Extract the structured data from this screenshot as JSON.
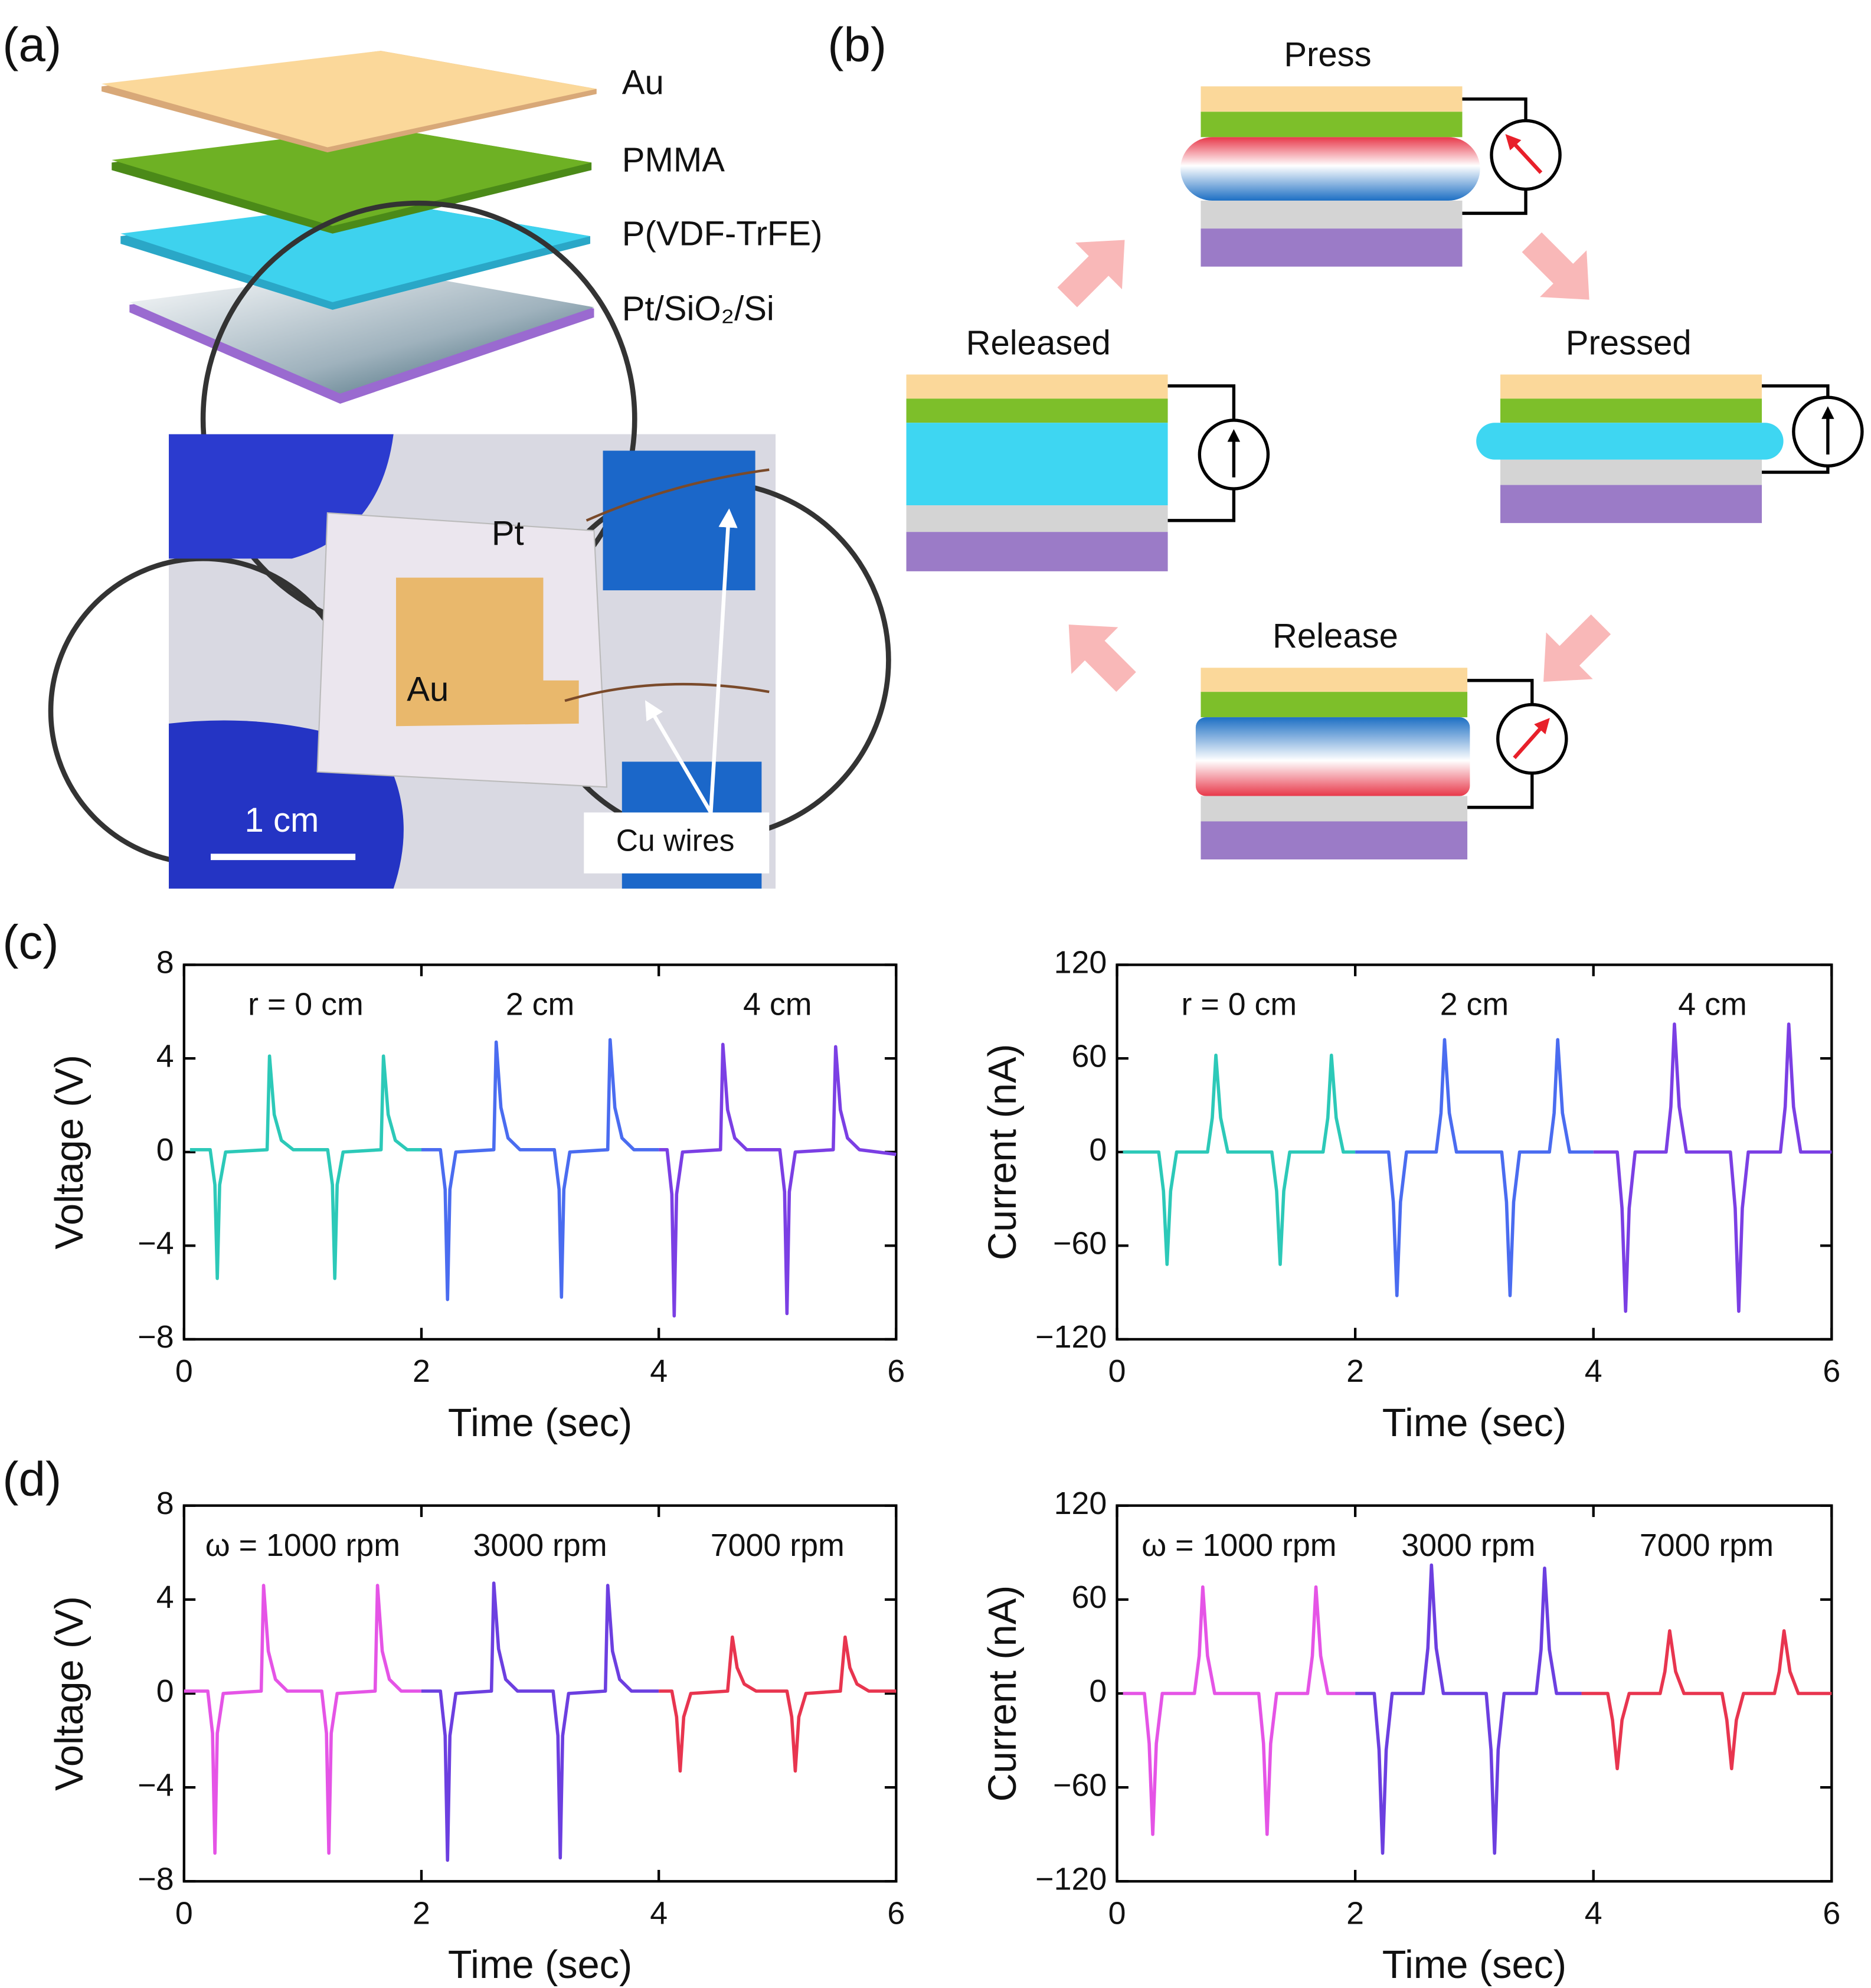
{
  "panels": {
    "a": "(a)",
    "b": "(b)",
    "c": "(c)",
    "d": "(d)"
  },
  "layers": [
    "Au",
    "PMMA",
    "P(VDF-TrFE)",
    "Pt/SiO₂/Si"
  ],
  "photo": {
    "labels": [
      "Pt",
      "Au"
    ],
    "scale_bar": "1 cm",
    "callout": "Cu wires"
  },
  "states": {
    "press": "Press",
    "pressed": "Pressed",
    "release": "Release",
    "released": "Released"
  },
  "chart_data": [
    {
      "type": "line",
      "ylabel": "Voltage (V)",
      "xlabel": "Time (sec)",
      "xlim": [
        0,
        6
      ],
      "ylim": [
        -8,
        8
      ],
      "xticks": [
        0,
        2,
        4,
        6
      ],
      "yticks": [
        {
          "value": -8,
          "label": "−8"
        },
        {
          "value": -4,
          "label": "−4"
        },
        0,
        4,
        8
      ],
      "series": [
        {
          "name": "r = 0 cm",
          "color": "#2cc9b8",
          "x": [
            0.05,
            0.22,
            0.26,
            0.28,
            0.3,
            0.35,
            0.7,
            0.72,
            0.76,
            0.82,
            0.92,
            1.21,
            1.25,
            1.27,
            1.29,
            1.34,
            1.66,
            1.68,
            1.72,
            1.78,
            1.88,
            2.0
          ],
          "values": [
            0.1,
            0.1,
            -1.4,
            -5.4,
            -1.4,
            0,
            0.1,
            4.1,
            1.6,
            0.5,
            0.1,
            0.1,
            -1.4,
            -5.4,
            -1.4,
            0,
            0.1,
            4.1,
            1.6,
            0.5,
            0.1,
            0.1
          ]
        },
        {
          "name": "2 cm",
          "color": "#4a6cf0",
          "x": [
            2.0,
            2.16,
            2.2,
            2.22,
            2.24,
            2.29,
            2.61,
            2.63,
            2.67,
            2.73,
            2.83,
            3.12,
            3.16,
            3.18,
            3.2,
            3.25,
            3.57,
            3.59,
            3.63,
            3.69,
            3.79,
            4.0
          ],
          "values": [
            0.1,
            0.1,
            -1.6,
            -6.3,
            -1.6,
            0,
            0.1,
            4.7,
            1.9,
            0.6,
            0.1,
            0.1,
            -1.6,
            -6.2,
            -1.6,
            0,
            0.1,
            4.8,
            1.9,
            0.6,
            0.1,
            0.1
          ]
        },
        {
          "name": "4 cm",
          "color": "#7b3fe4",
          "x": [
            4.0,
            4.07,
            4.11,
            4.13,
            4.15,
            4.2,
            4.52,
            4.54,
            4.58,
            4.64,
            4.74,
            5.02,
            5.06,
            5.08,
            5.1,
            5.15,
            5.47,
            5.49,
            5.53,
            5.59,
            5.69,
            6.0
          ],
          "values": [
            0.1,
            0.1,
            -1.8,
            -7.0,
            -1.8,
            0,
            0.1,
            4.6,
            1.8,
            0.6,
            0.1,
            0.1,
            -1.7,
            -6.9,
            -1.7,
            0,
            0.1,
            4.5,
            1.8,
            0.6,
            0.1,
            -0.1
          ]
        }
      ]
    },
    {
      "type": "line",
      "ylabel": "Current (nA)",
      "xlabel": "Time (sec)",
      "xlim": [
        0,
        6
      ],
      "ylim": [
        -120,
        120
      ],
      "xticks": [
        0,
        2,
        4,
        6
      ],
      "yticks": [
        {
          "value": -120,
          "label": "−120"
        },
        {
          "value": -60,
          "label": "−60"
        },
        0,
        60,
        120
      ],
      "series": [
        {
          "name": "r = 0 cm",
          "color": "#2cc9b8",
          "x": [
            0.05,
            0.35,
            0.39,
            0.42,
            0.45,
            0.5,
            0.76,
            0.8,
            0.83,
            0.87,
            0.93,
            1.3,
            1.34,
            1.37,
            1.4,
            1.45,
            1.73,
            1.77,
            1.8,
            1.84,
            1.9,
            2.0
          ],
          "values": [
            0,
            0,
            -25,
            -72,
            -25,
            0,
            0,
            22,
            62,
            22,
            0,
            0,
            -25,
            -72,
            -25,
            0,
            0,
            22,
            62,
            22,
            0,
            0
          ]
        },
        {
          "name": "2 cm",
          "color": "#4a6cf0",
          "x": [
            2.0,
            2.28,
            2.32,
            2.35,
            2.38,
            2.43,
            2.68,
            2.72,
            2.75,
            2.79,
            2.85,
            3.23,
            3.27,
            3.3,
            3.33,
            3.38,
            3.63,
            3.67,
            3.7,
            3.74,
            3.8,
            4.0
          ],
          "values": [
            0,
            0,
            -32,
            -92,
            -32,
            0,
            0,
            25,
            72,
            25,
            0,
            0,
            -32,
            -92,
            -32,
            0,
            0,
            25,
            72,
            25,
            0,
            0
          ]
        },
        {
          "name": "4 cm",
          "color": "#7b3fe4",
          "x": [
            4.0,
            4.2,
            4.24,
            4.27,
            4.3,
            4.35,
            4.61,
            4.65,
            4.68,
            4.72,
            4.78,
            5.15,
            5.19,
            5.22,
            5.25,
            5.3,
            5.57,
            5.61,
            5.64,
            5.68,
            5.74,
            6.0
          ],
          "values": [
            0,
            0,
            -36,
            -102,
            -36,
            0,
            0,
            29,
            82,
            29,
            0,
            0,
            -36,
            -102,
            -36,
            0,
            0,
            29,
            82,
            29,
            0,
            0
          ]
        }
      ]
    },
    {
      "type": "line",
      "ylabel": "Voltage (V)",
      "xlabel": "Time (sec)",
      "xlim": [
        0,
        6
      ],
      "ylim": [
        -8,
        8
      ],
      "xticks": [
        0,
        2,
        4,
        6
      ],
      "yticks": [
        {
          "value": -8,
          "label": "−8"
        },
        {
          "value": -4,
          "label": "−4"
        },
        0,
        4,
        8
      ],
      "series": [
        {
          "name": "ω = 1000 rpm",
          "color": "#e554e6",
          "x": [
            0.0,
            0.2,
            0.24,
            0.26,
            0.28,
            0.33,
            0.65,
            0.67,
            0.71,
            0.77,
            0.87,
            1.16,
            1.2,
            1.22,
            1.24,
            1.29,
            1.61,
            1.63,
            1.67,
            1.73,
            1.83,
            2.0
          ],
          "values": [
            0.1,
            0.1,
            -1.7,
            -6.8,
            -1.7,
            0,
            0.1,
            4.6,
            1.8,
            0.6,
            0.1,
            0.1,
            -1.7,
            -6.8,
            -1.7,
            0,
            0.1,
            4.6,
            1.8,
            0.6,
            0.1,
            0.1
          ]
        },
        {
          "name": "3000 rpm",
          "color": "#6c3fe0",
          "x": [
            2.0,
            2.16,
            2.2,
            2.22,
            2.24,
            2.29,
            2.59,
            2.61,
            2.65,
            2.71,
            2.81,
            3.11,
            3.15,
            3.17,
            3.19,
            3.24,
            3.55,
            3.57,
            3.61,
            3.67,
            3.77,
            4.0
          ],
          "values": [
            0.1,
            0.1,
            -1.8,
            -7.1,
            -1.8,
            0,
            0.1,
            4.7,
            1.9,
            0.6,
            0.1,
            0.1,
            -1.8,
            -7.0,
            -1.8,
            0,
            0.1,
            4.6,
            1.8,
            0.6,
            0.1,
            0.1
          ]
        },
        {
          "name": "7000 rpm",
          "color": "#e8354f",
          "x": [
            4.0,
            4.11,
            4.15,
            4.18,
            4.21,
            4.27,
            4.58,
            4.62,
            4.66,
            4.72,
            4.82,
            5.08,
            5.12,
            5.15,
            5.18,
            5.24,
            5.53,
            5.57,
            5.61,
            5.67,
            5.77,
            6.0
          ],
          "values": [
            0.1,
            0.1,
            -1.0,
            -3.3,
            -1.0,
            0,
            0.1,
            2.4,
            1.1,
            0.4,
            0.1,
            0.1,
            -1.0,
            -3.3,
            -1.0,
            0,
            0.1,
            2.4,
            1.1,
            0.4,
            0.1,
            0.1
          ]
        }
      ]
    },
    {
      "type": "line",
      "ylabel": "Current (nA)",
      "xlabel": "Time (sec)",
      "xlim": [
        0,
        6
      ],
      "ylim": [
        -120,
        120
      ],
      "xticks": [
        0,
        2,
        4,
        6
      ],
      "yticks": [
        {
          "value": -120,
          "label": "−120"
        },
        {
          "value": -60,
          "label": "−60"
        },
        0,
        60,
        120
      ],
      "series": [
        {
          "name": "ω = 1000 rpm",
          "color": "#e554e6",
          "x": [
            0.05,
            0.23,
            0.27,
            0.3,
            0.33,
            0.38,
            0.65,
            0.69,
            0.72,
            0.76,
            0.82,
            1.19,
            1.23,
            1.26,
            1.29,
            1.34,
            1.6,
            1.64,
            1.67,
            1.71,
            1.77,
            2.0
          ],
          "values": [
            0,
            0,
            -32,
            -90,
            -32,
            0,
            0,
            24,
            68,
            24,
            0,
            0,
            -32,
            -90,
            -32,
            0,
            0,
            24,
            68,
            24,
            0,
            0
          ]
        },
        {
          "name": "3000 rpm",
          "color": "#6c3fe0",
          "x": [
            2.0,
            2.16,
            2.2,
            2.23,
            2.26,
            2.31,
            2.57,
            2.61,
            2.64,
            2.68,
            2.74,
            3.1,
            3.14,
            3.17,
            3.2,
            3.25,
            3.52,
            3.56,
            3.59,
            3.63,
            3.69,
            3.9
          ],
          "values": [
            0,
            0,
            -36,
            -102,
            -36,
            0,
            0,
            29,
            82,
            29,
            0,
            0,
            -36,
            -102,
            -36,
            0,
            0,
            28,
            80,
            28,
            0,
            0
          ]
        },
        {
          "name": "7000 rpm",
          "color": "#e8354f",
          "x": [
            3.9,
            4.12,
            4.16,
            4.2,
            4.24,
            4.3,
            4.56,
            4.6,
            4.64,
            4.69,
            4.76,
            5.08,
            5.12,
            5.16,
            5.2,
            5.26,
            5.52,
            5.56,
            5.6,
            5.65,
            5.72,
            6.0
          ],
          "values": [
            0,
            0,
            -17,
            -48,
            -17,
            0,
            0,
            14,
            40,
            14,
            0,
            0,
            -17,
            -48,
            -17,
            0,
            0,
            14,
            40,
            14,
            0,
            0
          ]
        }
      ]
    }
  ]
}
